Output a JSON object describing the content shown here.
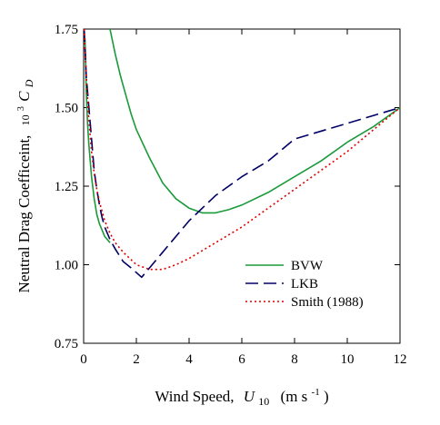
{
  "chart_data": {
    "type": "line",
    "xlabel": {
      "main": "Wind Speed,",
      "var": "U",
      "sub": "10",
      "unit_open": "(m s",
      "unit_exp": "-1",
      "unit_close": ")"
    },
    "ylabel": {
      "main": "Neutral Drag Coefficeint,",
      "prefix": "10",
      "prefix_exp": "3",
      "var": "C",
      "sub": "D"
    },
    "xlim": [
      0,
      12
    ],
    "ylim": [
      0.75,
      1.75
    ],
    "xticks": [
      0,
      2,
      4,
      6,
      8,
      10,
      12
    ],
    "yticks": [
      0.75,
      1.0,
      1.25,
      1.5,
      1.75
    ],
    "ytick_labels": [
      "0.75",
      "1.00",
      "1.25",
      "1.50",
      "1.75"
    ],
    "legend_position": "lower-right",
    "grid": false,
    "series": [
      {
        "name": "BVW",
        "color": "#1a9a3a",
        "style": "solid",
        "x": [
          0.05,
          0.1,
          0.15,
          0.2,
          0.3,
          0.4,
          0.5,
          0.6,
          0.7,
          0.8,
          0.9,
          1.0
        ],
        "y": [
          1.72,
          1.55,
          1.45,
          1.38,
          1.28,
          1.21,
          1.16,
          1.13,
          1.11,
          1.09,
          1.08,
          1.07
        ]
      },
      {
        "name": "",
        "color": "#1a9a3a",
        "style": "solid",
        "x": [
          1.0,
          1.2,
          1.4,
          1.6,
          1.8,
          2.0,
          2.5,
          3.0,
          3.5,
          4.0,
          4.5,
          5.0,
          5.5,
          6.0,
          7.0,
          8.0,
          9.0,
          10.0,
          11.0,
          12.0
        ],
        "y": [
          1.75,
          1.67,
          1.6,
          1.54,
          1.48,
          1.43,
          1.34,
          1.26,
          1.21,
          1.18,
          1.165,
          1.165,
          1.175,
          1.19,
          1.23,
          1.28,
          1.33,
          1.39,
          1.44,
          1.5
        ]
      },
      {
        "name": "LKB",
        "color": "#000066",
        "style": "dashed",
        "x": [
          0.02,
          0.1,
          0.2,
          0.3,
          0.4,
          0.5,
          0.6,
          0.7,
          0.8,
          1.0,
          1.2,
          1.5,
          1.8,
          2.2,
          3.0,
          4.0,
          5.0,
          6.0,
          7.0,
          8.0,
          10.0,
          12.0
        ],
        "y": [
          1.75,
          1.6,
          1.5,
          1.4,
          1.3,
          1.24,
          1.19,
          1.15,
          1.12,
          1.08,
          1.05,
          1.01,
          0.99,
          0.96,
          1.04,
          1.14,
          1.22,
          1.28,
          1.33,
          1.4,
          1.45,
          1.5
        ]
      },
      {
        "name": "Smith (1988)",
        "color": "#dd0000",
        "style": "dotted",
        "x": [
          0.02,
          0.1,
          0.2,
          0.3,
          0.4,
          0.5,
          0.6,
          0.8,
          1.0,
          1.2,
          1.5,
          2.0,
          2.5,
          3.0,
          3.5,
          4.0,
          5.0,
          6.0,
          7.0,
          8.0,
          9.0,
          10.0,
          11.0,
          12.0
        ],
        "y": [
          1.75,
          1.6,
          1.46,
          1.36,
          1.29,
          1.24,
          1.2,
          1.14,
          1.1,
          1.07,
          1.04,
          1.0,
          0.985,
          0.985,
          1.0,
          1.02,
          1.07,
          1.12,
          1.18,
          1.24,
          1.3,
          1.36,
          1.43,
          1.5
        ]
      }
    ]
  }
}
